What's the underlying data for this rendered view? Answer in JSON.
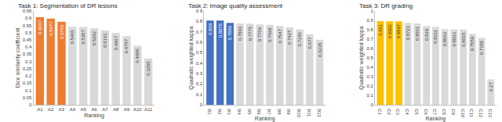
{
  "chart_data": [
    {
      "type": "bar",
      "title": "Task 1: Segmentation of DR lesions",
      "x_label": "Ranking",
      "y_label": "Dice similarity coefficient",
      "categories": [
        "A1",
        "A2",
        "A3",
        "A4",
        "A5",
        "A6",
        "A7",
        "A8",
        "A9",
        "A10",
        "A11"
      ],
      "values": [
        0.6067,
        0.5977,
        0.5756,
        0.5401,
        0.5387,
        0.5292,
        0.5161,
        0.4967,
        0.4757,
        0.4095,
        0.3206
      ],
      "colors": [
        "#ed7d31",
        "#ed7d31",
        "#ed7d31",
        "#d9d9d9",
        "#d9d9d9",
        "#d9d9d9",
        "#d9d9d9",
        "#d9d9d9",
        "#d9d9d9",
        "#d9d9d9",
        "#d9d9d9"
      ],
      "ylim": [
        0,
        0.65
      ],
      "yticks": [
        0,
        0.05,
        0.1,
        0.15,
        0.2,
        0.25,
        0.3,
        0.35,
        0.4,
        0.45,
        0.5,
        0.55,
        0.6,
        0.65
      ],
      "grid": false,
      "data_labels": true
    },
    {
      "type": "bar",
      "title": "Task 2: Image quality assessment",
      "x_label": "Ranking",
      "y_label": "Quadratic weighted kappa",
      "categories": [
        "B1",
        "B2",
        "B3",
        "B4",
        "B5",
        "B6",
        "B7",
        "B8",
        "B9",
        "B10",
        "B11",
        "B12"
      ],
      "values": [
        0.809,
        0.8075,
        0.7856,
        0.7803,
        0.7775,
        0.7704,
        0.7669,
        0.7547,
        0.7427,
        0.7246,
        0.677,
        0.6235
      ],
      "colors": [
        "#4472c4",
        "#4472c4",
        "#4472c4",
        "#d9d9d9",
        "#d9d9d9",
        "#d9d9d9",
        "#d9d9d9",
        "#d9d9d9",
        "#d9d9d9",
        "#d9d9d9",
        "#d9d9d9",
        "#d9d9d9"
      ],
      "ylim": [
        0,
        0.9
      ],
      "yticks": [
        0,
        0.1,
        0.2,
        0.3,
        0.4,
        0.5,
        0.6,
        0.7,
        0.8,
        0.9
      ],
      "grid": false,
      "data_labels": true
    },
    {
      "type": "bar",
      "title": "Task 3: DR grading",
      "x_label": "Ranking",
      "y_label": "Quadratic weighted kappa",
      "categories": [
        "C1",
        "C2",
        "C3",
        "C4",
        "C5",
        "C6",
        "C7",
        "C8",
        "C9",
        "C10",
        "C11",
        "C12",
        "C13"
      ],
      "values": [
        0.891,
        0.8902,
        0.8897,
        0.8721,
        0.8661,
        0.839,
        0.8311,
        0.8063,
        0.8033,
        0.8015,
        0.7559,
        0.7155,
        0.27
      ],
      "colors": [
        "#ffc000",
        "#ffc000",
        "#ffc000",
        "#d9d9d9",
        "#d9d9d9",
        "#d9d9d9",
        "#d9d9d9",
        "#d9d9d9",
        "#d9d9d9",
        "#d9d9d9",
        "#d9d9d9",
        "#d9d9d9",
        "#d9d9d9"
      ],
      "ylim": [
        0,
        1
      ],
      "yticks": [
        0,
        0.1,
        0.2,
        0.3,
        0.4,
        0.5,
        0.6,
        0.7,
        0.8,
        0.9,
        1
      ],
      "grid": false,
      "data_labels": true
    }
  ]
}
